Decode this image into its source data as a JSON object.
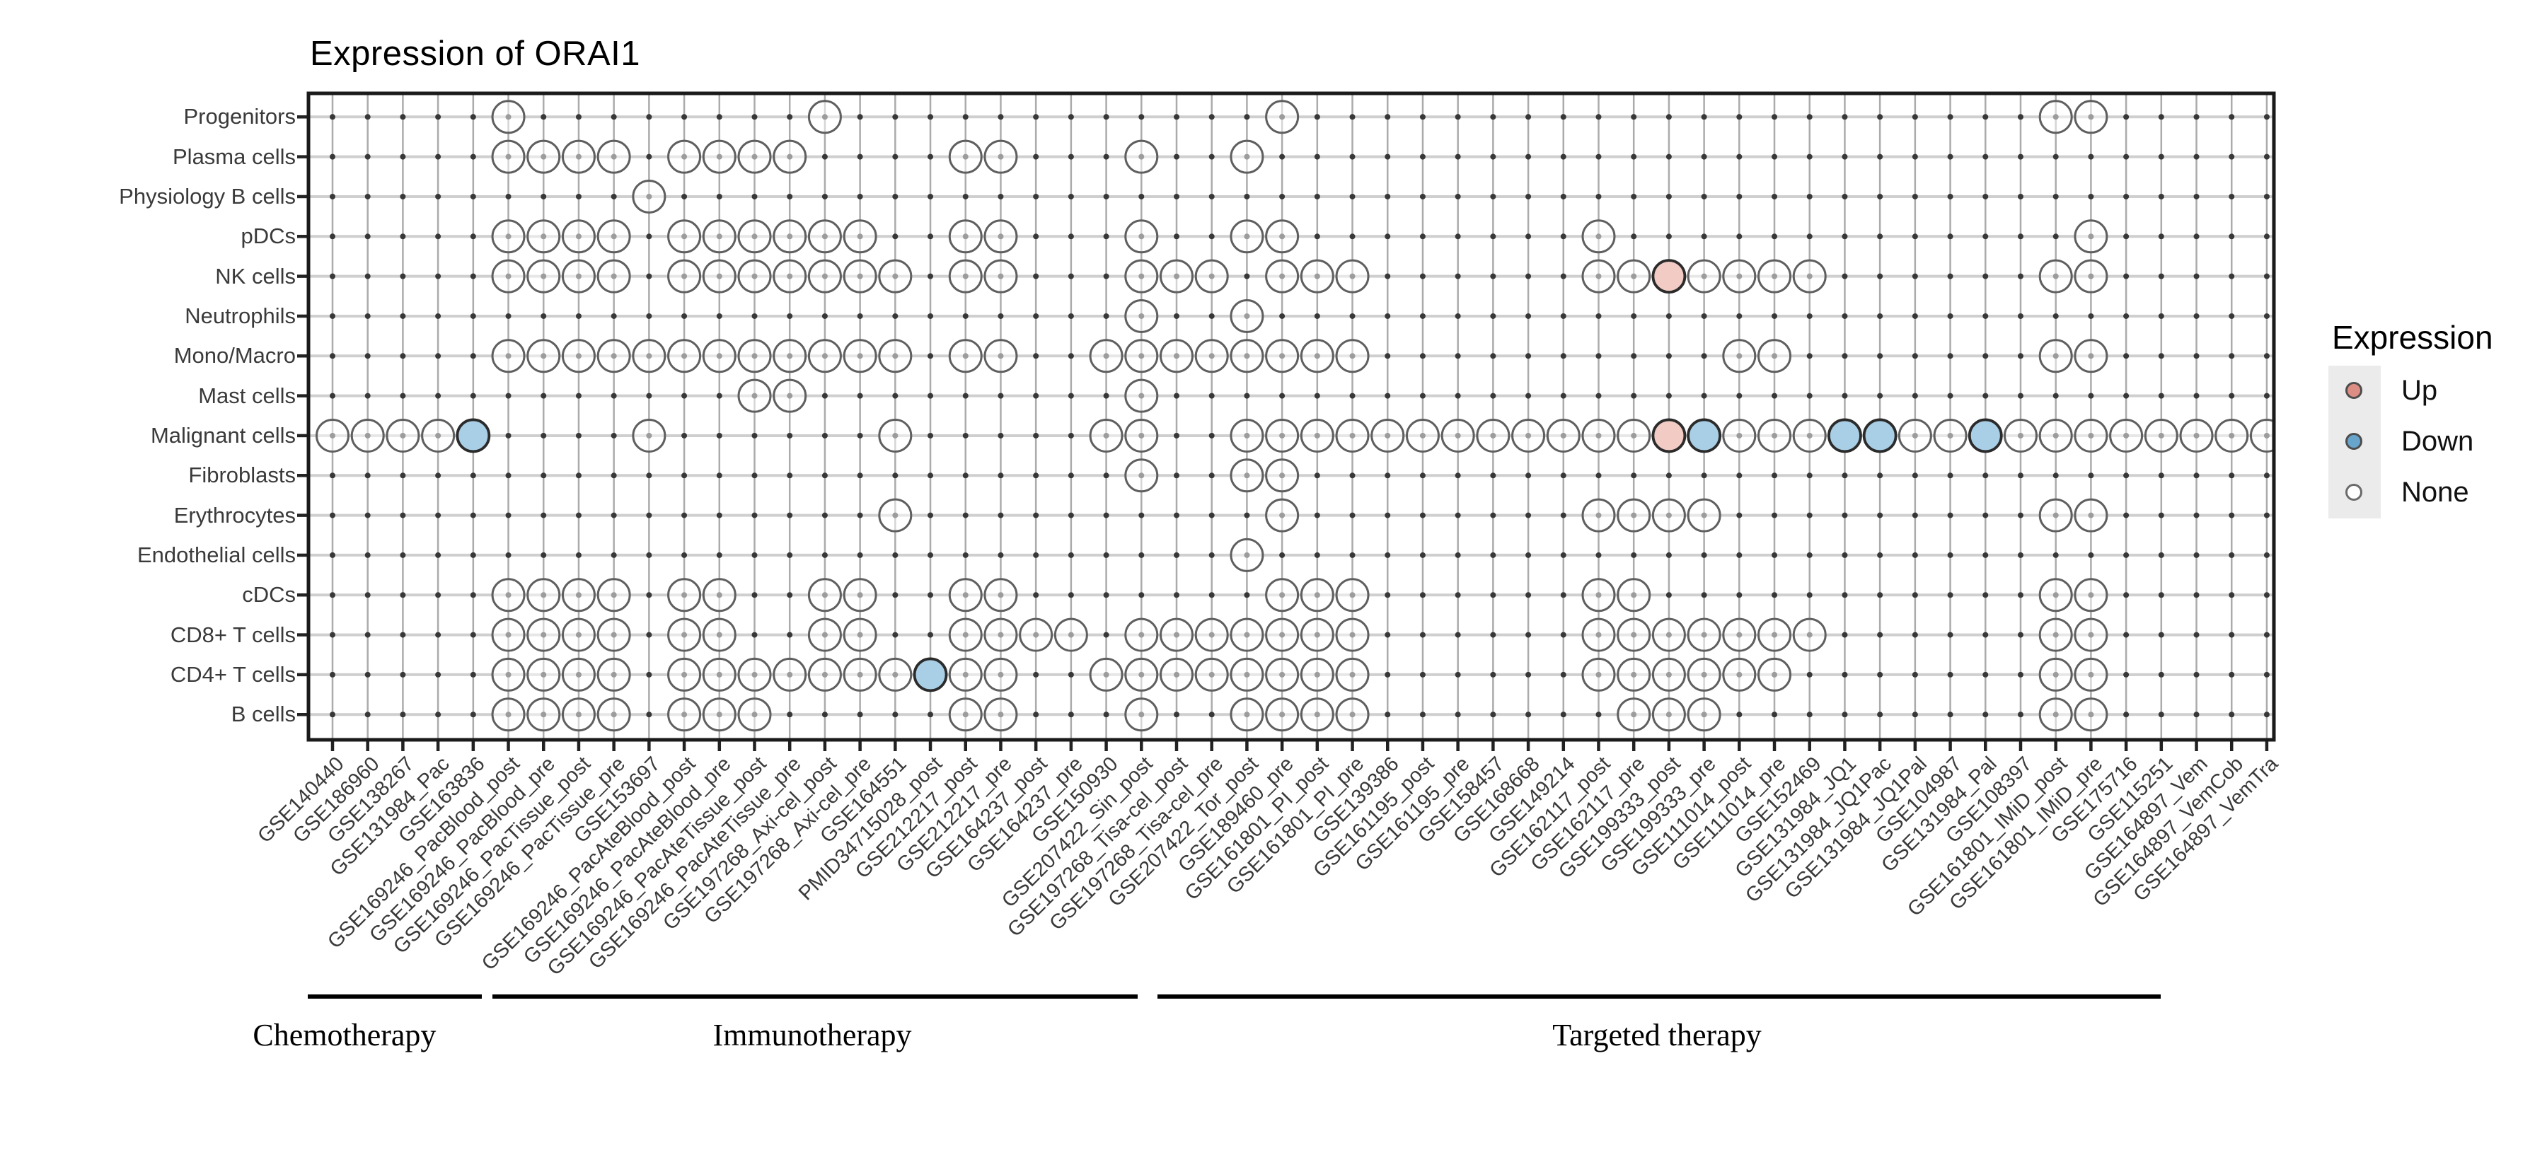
{
  "chart_data": {
    "type": "heatmap",
    "title": "Expression of ORAI1",
    "rows": [
      "Progenitors",
      "Plasma cells",
      "Physiology B cells",
      "pDCs",
      "NK cells",
      "Neutrophils",
      "Mono/Macro",
      "Mast cells",
      "Malignant cells",
      "Fibroblasts",
      "Erythrocytes",
      "Endothelial cells",
      "cDCs",
      "CD8+ T cells",
      "CD4+ T cells",
      "B cells"
    ],
    "columns": [
      "GSE140440",
      "GSE186960",
      "GSE138267",
      "GSE131984_Pac",
      "GSE163836",
      "GSE169246_PacBlood_post",
      "GSE169246_PacBlood_pre",
      "GSE169246_PacTissue_post",
      "GSE169246_PacTissue_pre",
      "GSE153697",
      "GSE169246_PacAteBlood_post",
      "GSE169246_PacAteBlood_pre",
      "GSE169246_PacAteTissue_post",
      "GSE169246_PacAteTissue_pre",
      "GSE197268_Axi-cel_post",
      "GSE197268_Axi-cel_pre",
      "GSE164551",
      "PMID34715028_post",
      "GSE212217_post",
      "GSE212217_pre",
      "GSE164237_post",
      "GSE164237_pre",
      "GSE150930",
      "GSE207422_Sin_post",
      "GSE197268_Tisa-cel_post",
      "GSE197268_Tisa-cel_pre",
      "GSE207422_Tor_post",
      "GSE189460_pre",
      "GSE161801_PI_post",
      "GSE161801_PI_pre",
      "GSE139386",
      "GSE161195_post",
      "GSE161195_pre",
      "GSE158457",
      "GSE168668",
      "GSE149214",
      "GSE162117_post",
      "GSE162117_pre",
      "GSE199333_post",
      "GSE199333_pre",
      "GSE111014_post",
      "GSE111014_pre",
      "GSE152469",
      "GSE131984_JQ1",
      "GSE131984_JQ1Pac",
      "GSE131984_JQ1Pal",
      "GSE104987",
      "GSE131984_Pal",
      "GSE108397",
      "GSE161801_IMiD_post",
      "GSE161801_IMiD_pre",
      "GSE175716",
      "GSE115251",
      "GSE164897_Vem",
      "GSE164897_VemCob",
      "GSE164897_VemTra"
    ],
    "cells": {
      "Progenitors": [
        6,
        15,
        28,
        50,
        51
      ],
      "Plasma cells": [
        6,
        7,
        8,
        9,
        11,
        12,
        13,
        14,
        19,
        20,
        24,
        27
      ],
      "Physiology B cells": [
        10
      ],
      "pDCs": [
        6,
        7,
        8,
        9,
        11,
        12,
        13,
        14,
        15,
        16,
        19,
        20,
        24,
        27,
        28,
        37,
        51
      ],
      "NK cells": [
        6,
        7,
        8,
        9,
        11,
        12,
        13,
        14,
        15,
        16,
        17,
        19,
        20,
        24,
        25,
        26,
        28,
        29,
        30,
        37,
        38,
        39,
        40,
        41,
        42,
        43,
        50,
        51
      ],
      "Neutrophils": [
        24,
        27
      ],
      "Mono/Macro": [
        6,
        7,
        8,
        9,
        10,
        11,
        12,
        13,
        14,
        15,
        16,
        17,
        19,
        20,
        23,
        24,
        25,
        26,
        27,
        28,
        29,
        30,
        41,
        42,
        50,
        51
      ],
      "Mast cells": [
        13,
        14,
        24
      ],
      "Malignant cells": [
        1,
        2,
        3,
        4,
        5,
        10,
        17,
        23,
        24,
        27,
        28,
        29,
        30,
        31,
        32,
        33,
        34,
        35,
        36,
        37,
        38,
        39,
        40,
        41,
        42,
        43,
        44,
        45,
        46,
        47,
        48,
        49,
        50,
        51,
        52,
        53,
        54,
        55,
        56
      ],
      "Fibroblasts": [
        24,
        27,
        28
      ],
      "Erythrocytes": [
        17,
        28,
        37,
        38,
        39,
        40,
        50,
        51
      ],
      "Endothelial cells": [
        27
      ],
      "cDCs": [
        6,
        7,
        8,
        9,
        11,
        12,
        15,
        16,
        19,
        20,
        28,
        29,
        30,
        37,
        38,
        50,
        51
      ],
      "CD8+ T cells": [
        6,
        7,
        8,
        9,
        11,
        12,
        15,
        16,
        19,
        20,
        21,
        22,
        24,
        25,
        26,
        27,
        28,
        29,
        30,
        37,
        38,
        39,
        40,
        41,
        42,
        43,
        50,
        51
      ],
      "CD4+ T cells": [
        6,
        7,
        8,
        9,
        11,
        12,
        13,
        14,
        15,
        16,
        17,
        18,
        19,
        20,
        23,
        24,
        25,
        26,
        27,
        28,
        29,
        30,
        37,
        38,
        39,
        40,
        41,
        42,
        50,
        51
      ],
      "B cells": [
        6,
        7,
        8,
        9,
        11,
        12,
        13,
        19,
        20,
        24,
        27,
        28,
        29,
        30,
        38,
        39,
        40,
        50,
        51
      ]
    },
    "up_cells": [
      [
        "NK cells",
        39
      ],
      [
        "Malignant cells",
        39
      ]
    ],
    "down_cells": [
      [
        "Malignant cells",
        5
      ],
      [
        "Malignant cells",
        40
      ],
      [
        "Malignant cells",
        44
      ],
      [
        "Malignant cells",
        45
      ],
      [
        "Malignant cells",
        48
      ],
      [
        "CD4+ T cells",
        18
      ]
    ],
    "groups": [
      {
        "label": "Chemotherapy",
        "cols": [
          1,
          5
        ],
        "line": [
          0.3,
          5.25
        ],
        "label_at": 1.34
      },
      {
        "label": "Immunotherapy",
        "cols": [
          6,
          24
        ],
        "line": [
          5.55,
          23.9
        ],
        "label_at": 14.64
      },
      {
        "label": "Targeted therapy",
        "cols": [
          25,
          56
        ],
        "line": [
          24.45,
          52.98
        ],
        "label_at": 38.66
      }
    ],
    "legend": {
      "title": "Expression",
      "items": [
        {
          "label": "Up",
          "fill": "#DD8E84"
        },
        {
          "label": "Down",
          "fill": "#68A5CC"
        },
        {
          "label": "None",
          "fill": "#FFFFFF"
        }
      ]
    },
    "colors": {
      "up_fill": "#F2CBC5",
      "down_fill": "#A9CFE6",
      "circle_stroke": "#5F5F5F",
      "accent_stroke": "#2B2B2B",
      "grid_v": "#ABABAB",
      "grid_h": "#CFCFCF",
      "intersection_dot": "#383838",
      "panel_border": "#1A1A1A",
      "legend_key_bg": "#EBEBEB"
    },
    "grid": true,
    "legend_position": "right"
  }
}
